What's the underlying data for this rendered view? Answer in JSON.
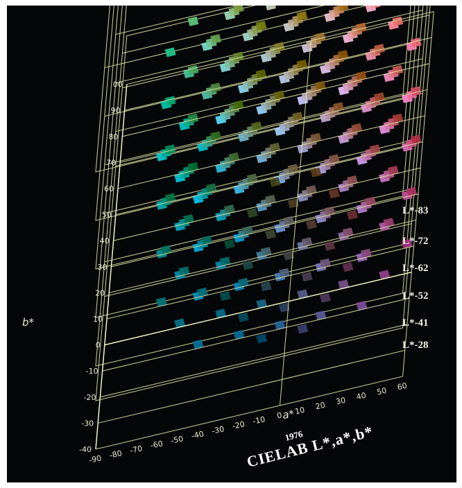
{
  "figure": {
    "year": "1976",
    "title": "CIELAB L*,a*,b*",
    "axes": {
      "a_label": "a*",
      "b_label": "b*",
      "a_ticks": [
        "-90",
        "-80",
        "-70",
        "-60",
        "-50",
        "-40",
        "-30",
        "-20",
        "-10",
        "0",
        "10",
        "20",
        "30",
        "40",
        "50",
        "60"
      ],
      "b_ticks": [
        "-40",
        "-30",
        "-20",
        "-10",
        "0",
        "10",
        "20",
        "30",
        "40",
        "50",
        "60",
        "70",
        "80",
        "90",
        "00"
      ]
    },
    "lightness_planes": [
      {
        "label": "L*-83",
        "L": 83
      },
      {
        "label": "L*-72",
        "L": 72
      },
      {
        "label": "L*-62",
        "L": 62
      },
      {
        "label": "L*-52",
        "L": 52
      },
      {
        "label": "L*-41",
        "L": 41
      },
      {
        "label": "L*-28",
        "L": 28
      }
    ]
  },
  "colors": {
    "background": "#050607",
    "grid_lines": "#dfe6a6",
    "label_text": "#e9e9d4"
  }
}
